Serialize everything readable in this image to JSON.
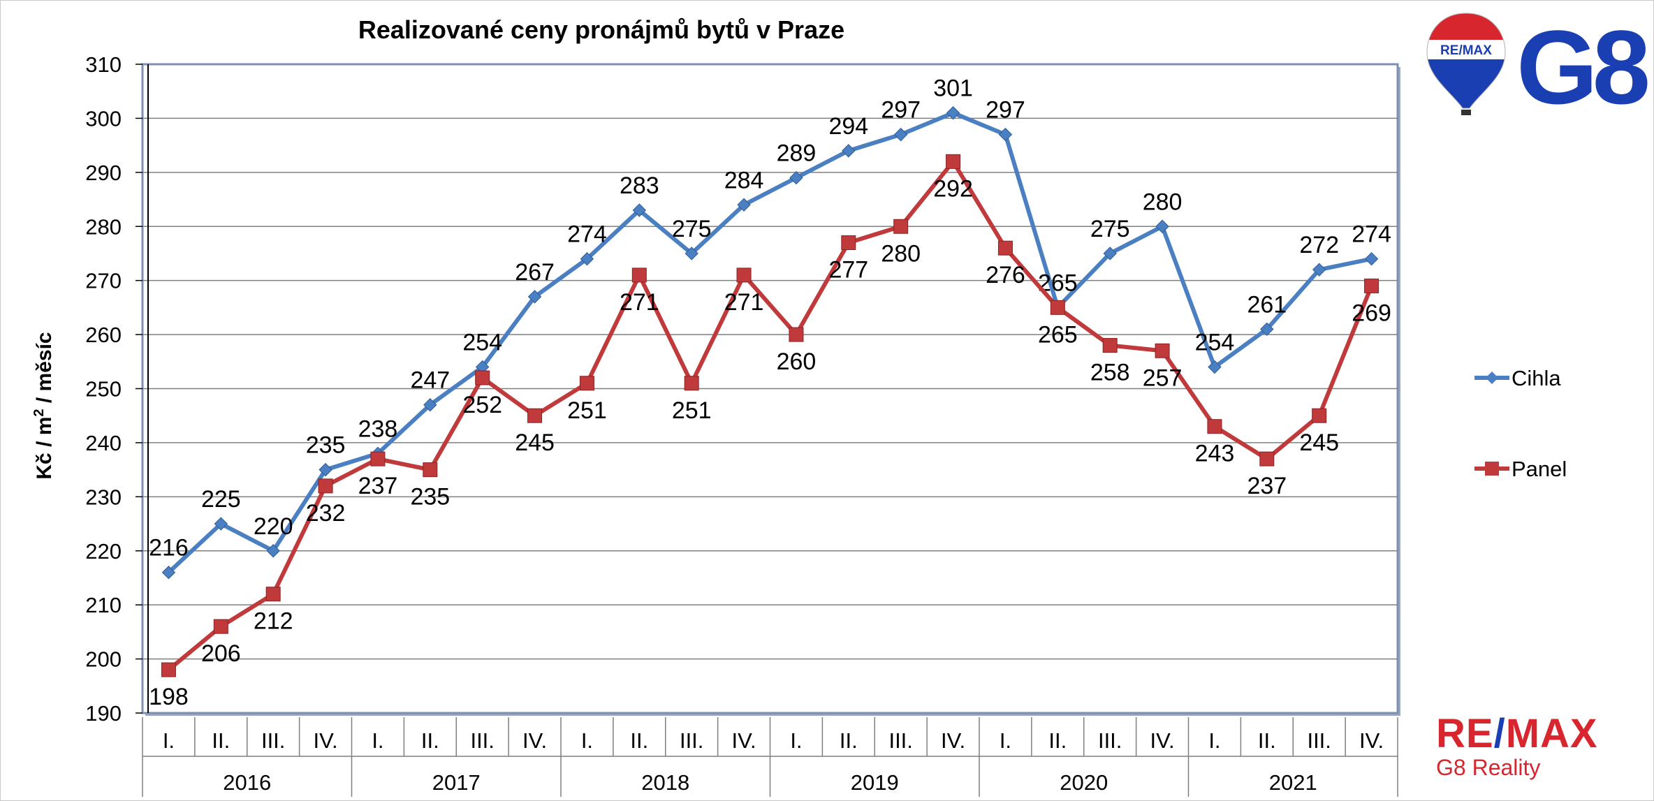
{
  "chart_data": {
    "type": "line",
    "title": "Realizované ceny pronájmů bytů v Praze",
    "ylabel_main": "Kč / m",
    "ylabel_sup": "2",
    "ylabel_rest": " / měsíc",
    "ylim": [
      190,
      310
    ],
    "yticks": [
      190,
      200,
      210,
      220,
      230,
      240,
      250,
      260,
      270,
      280,
      290,
      300,
      310
    ],
    "grid": true,
    "legend_position": "right",
    "quarters": [
      "I.",
      "II.",
      "III.",
      "IV.",
      "I.",
      "II.",
      "III.",
      "IV.",
      "I.",
      "II.",
      "III.",
      "IV.",
      "I.",
      "II.",
      "III.",
      "IV.",
      "I.",
      "II.",
      "III.",
      "IV.",
      "I.",
      "II.",
      "III.",
      "IV."
    ],
    "years": [
      "2016",
      "2017",
      "2018",
      "2019",
      "2020",
      "2021"
    ],
    "series": [
      {
        "name": "Cihla",
        "color": "#4a7fc1",
        "marker": "diamond",
        "values": [
          216,
          225,
          220,
          235,
          238,
          247,
          254,
          267,
          274,
          283,
          275,
          284,
          289,
          294,
          297,
          301,
          297,
          265,
          275,
          280,
          254,
          261,
          272,
          274
        ],
        "label_pos": [
          "above",
          "above",
          "above",
          "above",
          "above",
          "above",
          "above",
          "above",
          "above",
          "above",
          "above",
          "above",
          "above",
          "above",
          "above",
          "above",
          "above",
          "above",
          "above",
          "above",
          "above",
          "above",
          "above",
          "above"
        ]
      },
      {
        "name": "Panel",
        "color": "#c0393b",
        "marker": "square",
        "values": [
          198,
          206,
          212,
          232,
          237,
          235,
          252,
          245,
          251,
          271,
          251,
          271,
          260,
          277,
          280,
          292,
          276,
          265,
          258,
          257,
          243,
          237,
          245,
          269
        ],
        "label_pos": [
          "below",
          "below",
          "below",
          "below",
          "below",
          "below",
          "below",
          "below",
          "below",
          "below",
          "below",
          "below",
          "below",
          "below",
          "below",
          "below",
          "below",
          "below",
          "below",
          "below",
          "below",
          "below",
          "below",
          "below"
        ]
      }
    ]
  },
  "logos": {
    "balloon_text": "RE/MAX",
    "g8_text": "G8",
    "footer_brand_left": "RE",
    "footer_brand_slash": "/",
    "footer_brand_right": "MAX",
    "footer_sub": "G8 Reality"
  }
}
